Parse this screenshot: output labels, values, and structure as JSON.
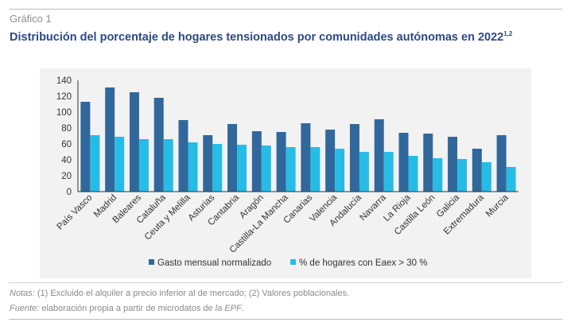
{
  "figure": {
    "label": "Gráfico 1",
    "title": "Distribución del porcentaje de hogares tensionados por comunidades autónomas en 2022",
    "title_sup": "1,2",
    "notes_label": "Notas:",
    "notes_text": " (1) Excluido el alquiler a precio inferior al de mercado; (2) Valores poblacionales.",
    "source_label": "Fuente:",
    "source_text": " elaboración propia a partir de microdatos de ",
    "source_ref": "la EPF",
    "source_end": "."
  },
  "colors": {
    "series1": "#31689b",
    "series2": "#27bce6",
    "axis": "#333333",
    "text": "#333333"
  },
  "chart_data": {
    "type": "bar",
    "title": "Distribución del porcentaje de hogares tensionados por comunidades autónomas en 2022",
    "xlabel": "",
    "ylabel": "",
    "ylim": [
      0,
      140
    ],
    "yticks": [
      0,
      20,
      40,
      60,
      80,
      100,
      120,
      140
    ],
    "grid": false,
    "legend_position": "bottom",
    "categories": [
      "País Vasco",
      "Madrid",
      "Baleares",
      "Cataluña",
      "Ceuta y Melilla",
      "Asturias",
      "Cantabria",
      "Aragón",
      "Castilla-La Mancha",
      "Canarias",
      "Valencia",
      "Andalucía",
      "Navarra",
      "La Rioja",
      "Castilla León",
      "Galicia",
      "Extremadura",
      "Murcia"
    ],
    "series": [
      {
        "name": "Gasto mensual normalizado",
        "values": [
          113,
          131,
          125,
          118,
          90,
          71,
          85,
          76,
          75,
          86,
          78,
          85,
          91,
          74,
          73,
          69,
          54,
          71
        ]
      },
      {
        "name": "% de hogares con Eaex > 30 %",
        "values": [
          71,
          69,
          66,
          66,
          62,
          60,
          59,
          58,
          56,
          56,
          54,
          50,
          50,
          45,
          42,
          41,
          37,
          31
        ]
      }
    ]
  }
}
